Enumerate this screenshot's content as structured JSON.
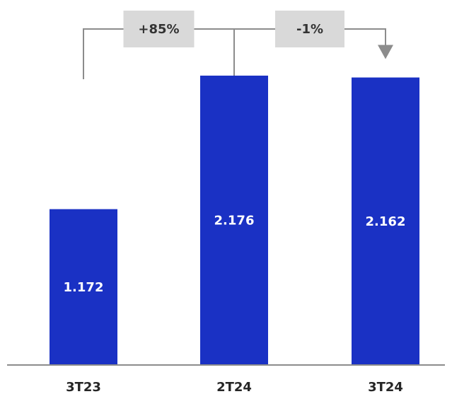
{
  "chart_data": {
    "type": "bar",
    "title": "",
    "xlabel": "",
    "ylabel": "",
    "categories": [
      "3T23",
      "2T24",
      "3T24"
    ],
    "values": [
      1172,
      2176,
      2162
    ],
    "value_labels": [
      "1.172",
      "2.176",
      "2.162"
    ],
    "ylim": [
      0,
      2500
    ],
    "grid": false,
    "changes": [
      {
        "from": "3T23",
        "to": "2T24",
        "label": "+85%"
      },
      {
        "from": "2T24",
        "to": "3T24",
        "label": "-1%"
      }
    ],
    "colors": {
      "bar": "#1a31c4",
      "axis": "#8c8c8c",
      "change_box": "#d9d9d9",
      "connector": "#8c8c8c"
    }
  }
}
